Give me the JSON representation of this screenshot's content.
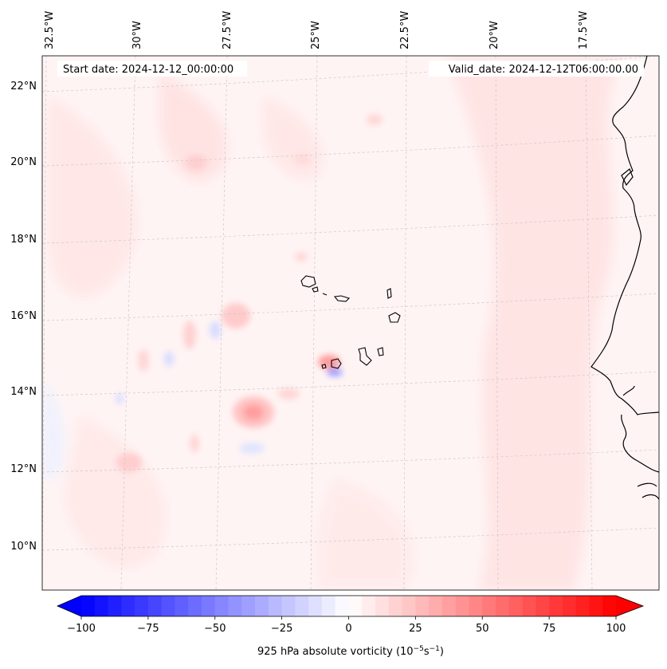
{
  "header": {
    "start_date": "Start date: 2024-12-12_00:00:00",
    "valid_date": "Valid_date: 2024-12-12T06:00:00.00"
  },
  "map": {
    "lon_labels": [
      "32.5°W",
      "30°W",
      "27.5°W",
      "25°W",
      "22.5°W",
      "20°W",
      "17.5°W"
    ],
    "lat_labels": [
      "22°N",
      "20°N",
      "18°N",
      "16°N",
      "14°N",
      "12°N",
      "10°N"
    ],
    "gridlines": "dashed",
    "background_color": "#fff5f5"
  },
  "colorbar": {
    "label_prefix": "925 hPa absolute vorticity (10",
    "label_exp1": "−5",
    "label_mid": "s",
    "label_exp2": "−1",
    "label_suffix": ")",
    "ticks": [
      "−100",
      "−75",
      "−50",
      "−25",
      "0",
      "25",
      "50",
      "75",
      "100"
    ],
    "colors": {
      "negative": "#0000ff",
      "zero": "#ffffff",
      "positive": "#ff0000"
    },
    "range": [
      -100,
      100
    ],
    "extend": "both"
  }
}
